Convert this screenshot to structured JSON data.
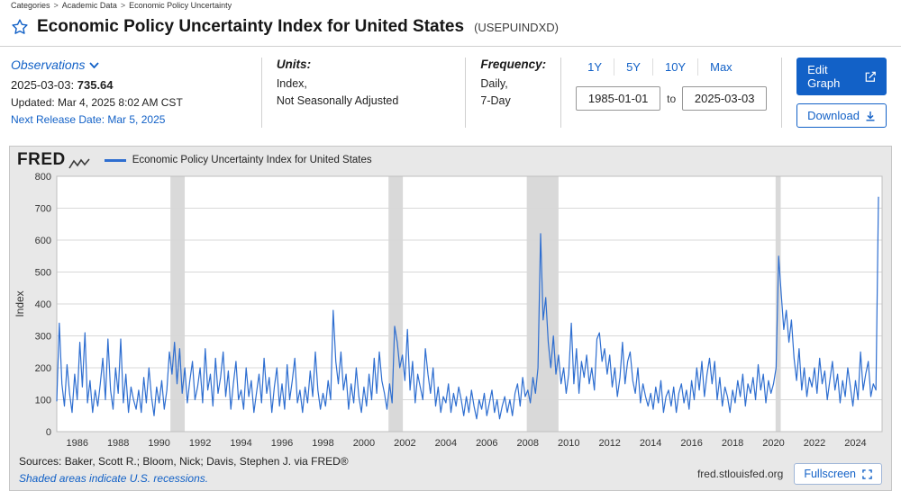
{
  "breadcrumb": {
    "items": [
      "Categories",
      "Academic Data",
      "Economic Policy Uncertainty"
    ],
    "separator": ">"
  },
  "header": {
    "title": "Economic Policy Uncertainty Index for United States",
    "series_id": "(USEPUINDXD)"
  },
  "meta": {
    "observations": {
      "dropdown_label": "Observations",
      "latest_date": "2025-03-03:",
      "latest_value": "735.64",
      "updated": "Updated: Mar 4, 2025 8:02 AM CST",
      "next_release": "Next Release Date: Mar 5, 2025"
    },
    "units": {
      "label": "Units:",
      "line1": "Index,",
      "line2": "Not Seasonally Adjusted"
    },
    "frequency": {
      "label": "Frequency:",
      "line1": "Daily,",
      "line2": "7-Day"
    },
    "ranges": [
      "1Y",
      "5Y",
      "10Y",
      "Max"
    ],
    "date_from": "1985-01-01",
    "date_separator": "to",
    "date_to": "2025-03-03",
    "edit_graph": "Edit Graph",
    "download": "Download"
  },
  "graph": {
    "logo": "FRED",
    "legend": "Economic Policy Uncertainty Index for United States"
  },
  "footer": {
    "sources": "Sources: Baker, Scott R.; Bloom, Nick; Davis, Stephen J. via FRED®",
    "shaded_note": "Shaded areas indicate U.S. recessions.",
    "site": "fred.stlouisfed.org",
    "fullscreen": "Fullscreen"
  },
  "colors": {
    "link_blue": "#1261c7",
    "button_blue": "#1261c7",
    "line_blue": "#2e6ed0",
    "panel_bg": "#e8e8e8",
    "recession_gray": "#d9d9d9"
  },
  "chart_data": {
    "type": "line",
    "title": "Economic Policy Uncertainty Index for United States",
    "xlabel": "",
    "ylabel": "Index",
    "legend": [
      "Economic Policy Uncertainty Index for United States"
    ],
    "legend_position": "top-left",
    "grid": "horizontal",
    "xlim": [
      1985,
      2025.3
    ],
    "ylim": [
      0,
      800
    ],
    "y_ticks": [
      0,
      100,
      200,
      300,
      400,
      500,
      600,
      700,
      800
    ],
    "x_ticks": [
      1986,
      1988,
      1990,
      1992,
      1994,
      1996,
      1998,
      2000,
      2002,
      2004,
      2006,
      2008,
      2010,
      2012,
      2014,
      2016,
      2018,
      2020,
      2022,
      2024
    ],
    "line_color": "#2e6ed0",
    "grid_color": "#d8d8d8",
    "recession_color": "#d9d9d9",
    "recessions": [
      [
        1990.55,
        1991.25
      ],
      [
        2001.2,
        2001.9
      ],
      [
        2007.95,
        2009.5
      ],
      [
        2020.1,
        2020.35
      ]
    ],
    "x_start": 1985.0,
    "x_step": 0.125,
    "values": [
      95,
      340,
      150,
      80,
      210,
      120,
      60,
      180,
      100,
      280,
      140,
      310,
      90,
      160,
      60,
      130,
      80,
      150,
      230,
      100,
      290,
      130,
      70,
      200,
      120,
      290,
      90,
      180,
      60,
      140,
      100,
      70,
      130,
      60,
      170,
      90,
      200,
      110,
      50,
      140,
      90,
      160,
      70,
      130,
      250,
      180,
      280,
      150,
      260,
      120,
      200,
      90,
      160,
      220,
      100,
      140,
      200,
      90,
      260,
      130,
      180,
      80,
      230,
      120,
      170,
      250,
      110,
      190,
      70,
      150,
      220,
      100,
      130,
      70,
      200,
      110,
      160,
      60,
      120,
      180,
      90,
      230,
      120,
      170,
      60,
      140,
      200,
      80,
      150,
      70,
      210,
      100,
      160,
      230,
      90,
      130,
      60,
      140,
      90,
      190,
      110,
      250,
      130,
      70,
      120,
      80,
      160,
      100,
      380,
      220,
      150,
      250,
      130,
      180,
      70,
      150,
      90,
      200,
      110,
      60,
      140,
      80,
      180,
      100,
      230,
      120,
      250,
      160,
      120,
      70,
      150,
      90,
      330,
      280,
      200,
      240,
      160,
      320,
      130,
      220,
      90,
      180,
      140,
      100,
      260,
      180,
      120,
      200,
      80,
      140,
      60,
      110,
      90,
      150,
      60,
      120,
      80,
      140,
      100,
      50,
      110,
      60,
      130,
      80,
      40,
      100,
      70,
      120,
      50,
      90,
      130,
      60,
      100,
      40,
      80,
      110,
      60,
      100,
      50,
      120,
      150,
      80,
      170,
      110,
      130,
      90,
      170,
      120,
      200,
      620,
      350,
      420,
      280,
      200,
      300,
      180,
      240,
      150,
      200,
      120,
      180,
      340,
      150,
      260,
      120,
      220,
      170,
      240,
      150,
      200,
      130,
      290,
      310,
      220,
      260,
      180,
      240,
      140,
      200,
      110,
      170,
      280,
      150,
      220,
      250,
      160,
      120,
      200,
      90,
      150,
      110,
      80,
      120,
      70,
      140,
      90,
      160,
      60,
      110,
      130,
      80,
      140,
      60,
      120,
      150,
      90,
      130,
      70,
      160,
      100,
      200,
      130,
      220,
      110,
      180,
      230,
      150,
      220,
      100,
      170,
      80,
      140,
      110,
      60,
      130,
      90,
      160,
      110,
      180,
      80,
      150,
      120,
      170,
      100,
      210,
      130,
      180,
      90,
      160,
      120,
      150,
      200,
      550,
      430,
      320,
      380,
      280,
      350,
      230,
      160,
      260,
      130,
      200,
      110,
      170,
      140,
      200,
      120,
      230,
      150,
      190,
      100,
      160,
      220,
      130,
      180,
      90,
      160,
      110,
      200,
      140,
      80,
      160,
      100,
      250,
      130,
      180,
      220,
      110,
      150,
      130,
      735.64
    ]
  }
}
